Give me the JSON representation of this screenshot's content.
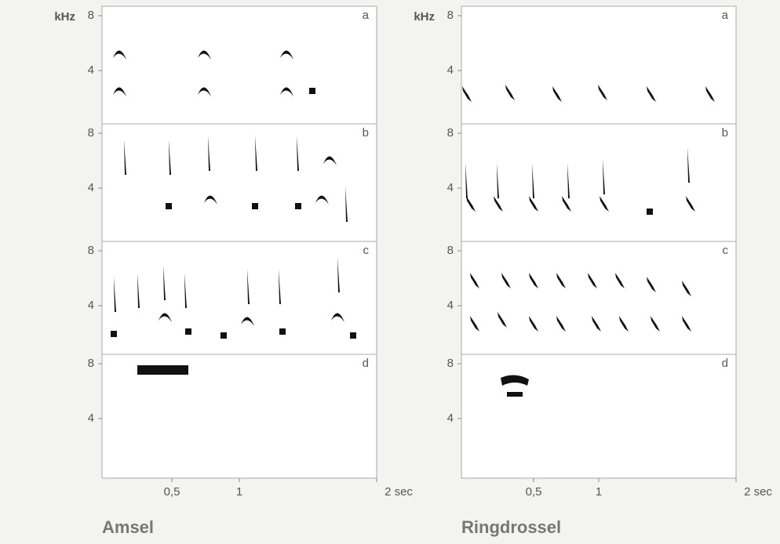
{
  "figures": [
    {
      "y_unit": "kHz",
      "panels": [
        {
          "letter": "a",
          "yticks": [
            "8",
            "4"
          ]
        },
        {
          "letter": "b",
          "yticks": [
            "8",
            "4"
          ]
        },
        {
          "letter": "c",
          "yticks": [
            "8",
            "4"
          ]
        },
        {
          "letter": "d",
          "yticks": [
            "8",
            "4"
          ]
        }
      ],
      "xticks": [
        "0,5",
        "1",
        "2 sec"
      ],
      "caption": "Amsel"
    },
    {
      "y_unit": "kHz",
      "panels": [
        {
          "letter": "a",
          "yticks": [
            "8",
            "4"
          ]
        },
        {
          "letter": "b",
          "yticks": [
            "8",
            "4"
          ]
        },
        {
          "letter": "c",
          "yticks": [
            "8",
            "4"
          ]
        },
        {
          "letter": "d",
          "yticks": [
            "8",
            "4"
          ]
        }
      ],
      "xticks": [
        "0,5",
        "1",
        "2 sec"
      ],
      "caption": "Ringdrossel"
    }
  ]
}
